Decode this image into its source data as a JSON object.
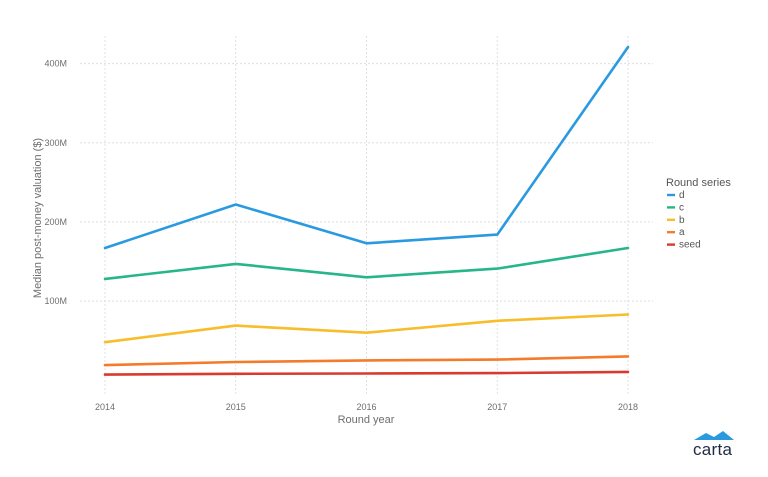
{
  "chart_data": {
    "type": "line",
    "xlabel": "Round year",
    "ylabel": "Median post-money valuation ($)",
    "x": [
      2014,
      2015,
      2016,
      2017,
      2018
    ],
    "x_tick_labels": [
      "2014",
      "2015",
      "2016",
      "2017",
      "2018"
    ],
    "y_ticks": [
      100000000,
      200000000,
      300000000,
      400000000
    ],
    "y_tick_labels": [
      "100M",
      "200M",
      "300M",
      "400M"
    ],
    "ylim": [
      -20000000,
      435000000
    ],
    "grid": true,
    "legend": {
      "title": "Round series",
      "placement": "right"
    },
    "series": [
      {
        "name": "d",
        "color": "#2a9ae0",
        "values": [
          167000000,
          222000000,
          173000000,
          184000000,
          421000000
        ]
      },
      {
        "name": "c",
        "color": "#27b58a",
        "values": [
          128000000,
          147000000,
          130000000,
          141000000,
          167000000
        ]
      },
      {
        "name": "b",
        "color": "#f7bd2a",
        "values": [
          48000000,
          69000000,
          60000000,
          75000000,
          83000000
        ]
      },
      {
        "name": "a",
        "color": "#f47b2a",
        "values": [
          19000000,
          23000000,
          25000000,
          26000000,
          30000000
        ]
      },
      {
        "name": "seed",
        "color": "#d83a2e",
        "values": [
          7000000,
          8000000,
          8500000,
          9000000,
          10500000
        ]
      }
    ]
  },
  "brand": {
    "name": "carta",
    "color": "#2a9ae0"
  }
}
